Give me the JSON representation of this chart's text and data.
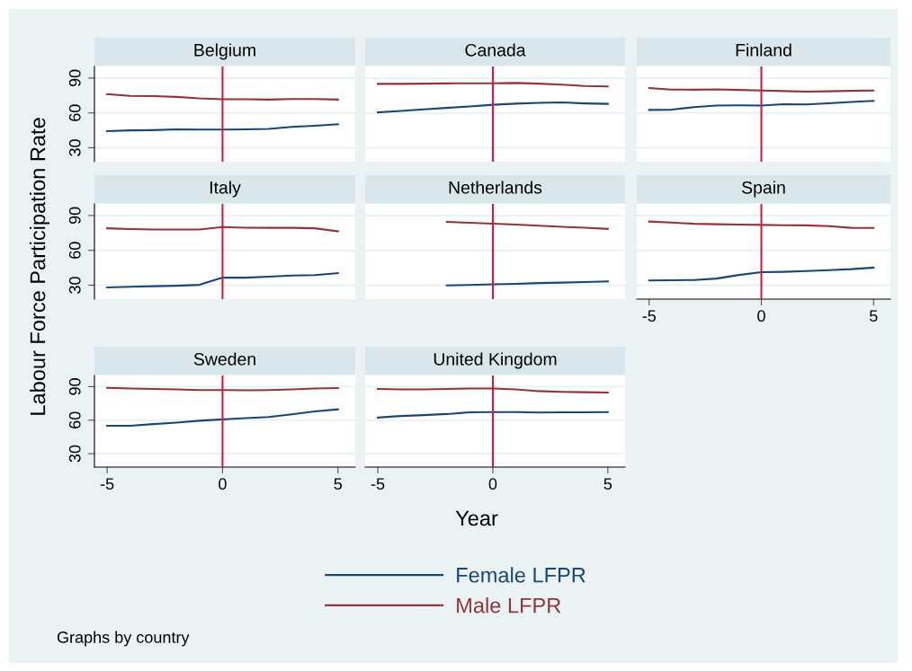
{
  "chart_data": [
    {
      "type": "line",
      "title": "Belgium",
      "x": [
        -5,
        -4,
        -3,
        -2,
        -1,
        0,
        1,
        2,
        3,
        4,
        5
      ],
      "xlim": [
        -5.55,
        5.75
      ],
      "xticks": [
        -5,
        0,
        5
      ],
      "ylim": [
        18,
        100
      ],
      "yticks": [
        30,
        60,
        90
      ],
      "grid": "y",
      "tick_labels": "y",
      "ylabel": "Labour Force Participation Rate",
      "ref_lines": [
        {
          "axis": "x",
          "value": 0,
          "color": "#d01c45"
        }
      ],
      "series": [
        {
          "color": "#1a476f",
          "values": [
            44.3,
            45,
            45.2,
            45.8,
            45.6,
            45.6,
            45.8,
            46.2,
            48,
            49,
            50.3
          ]
        },
        {
          "color": "#90353b",
          "values": [
            76.2,
            74.7,
            74.5,
            73.8,
            72.5,
            71.7,
            71.8,
            71.5,
            72,
            71.9,
            71.5
          ]
        }
      ]
    },
    {
      "type": "line",
      "title": "Canada",
      "x": [
        -5,
        -4,
        -3,
        -2,
        -1,
        0,
        1,
        2,
        3,
        4,
        5
      ],
      "xlim": [
        -5.55,
        5.75
      ],
      "xticks": [
        -5,
        0,
        5
      ],
      "ylim": [
        18,
        100
      ],
      "yticks": [
        30,
        60,
        90
      ],
      "grid": "y",
      "tick_labels": false,
      "ref_lines": [
        {
          "axis": "x",
          "value": 0,
          "color": "#d01c45"
        }
      ],
      "series": [
        {
          "color": "#1a476f",
          "values": [
            60.5,
            61.7,
            63.1,
            64.3,
            65.6,
            67,
            68,
            68.7,
            69,
            68.2,
            67.8
          ]
        },
        {
          "color": "#90353b",
          "values": [
            85,
            85,
            85.2,
            85.4,
            85.5,
            85.5,
            85.8,
            85.2,
            84.3,
            83.2,
            82.8
          ]
        }
      ]
    },
    {
      "type": "line",
      "title": "Finland",
      "x": [
        -5,
        -4,
        -3,
        -2,
        -1,
        0,
        1,
        2,
        3,
        4,
        5
      ],
      "xlim": [
        -5.55,
        5.75
      ],
      "xticks": [
        -5,
        0,
        5
      ],
      "ylim": [
        18,
        100
      ],
      "yticks": [
        30,
        60,
        90
      ],
      "grid": "y",
      "tick_labels": false,
      "ref_lines": [
        {
          "axis": "x",
          "value": 0,
          "color": "#d01c45"
        }
      ],
      "series": [
        {
          "color": "#1a476f",
          "values": [
            62.6,
            62.8,
            65,
            66.3,
            66.5,
            66.3,
            67.5,
            67.3,
            68.3,
            69.5,
            70.4
          ]
        },
        {
          "color": "#90353b",
          "values": [
            81.4,
            80.1,
            80,
            80.3,
            79.8,
            79.3,
            78.8,
            78.3,
            78.6,
            79,
            79.3
          ]
        }
      ]
    },
    {
      "type": "line",
      "title": "Italy",
      "x": [
        -5,
        -4,
        -3,
        -2,
        -1,
        0,
        1,
        2,
        3,
        4,
        5
      ],
      "xlim": [
        -5.55,
        5.75
      ],
      "xticks": [
        -5,
        0,
        5
      ],
      "ylim": [
        18,
        100
      ],
      "yticks": [
        30,
        60,
        90
      ],
      "grid": "y",
      "tick_labels": "y",
      "ref_lines": [
        {
          "axis": "x",
          "value": 0,
          "color": "#d01c45"
        }
      ],
      "series": [
        {
          "color": "#1a476f",
          "values": [
            28.1,
            28.6,
            29.1,
            29.5,
            30.3,
            36.5,
            36.5,
            37.3,
            38.3,
            38.7,
            40.4
          ]
        },
        {
          "color": "#90353b",
          "values": [
            79,
            78.3,
            78,
            78,
            78,
            80.1,
            79.5,
            79.4,
            79.4,
            79,
            76.4
          ]
        }
      ]
    },
    {
      "type": "line",
      "title": "Netherlands",
      "x": [
        -2,
        -1,
        0,
        1,
        2,
        3,
        4,
        5
      ],
      "xlim": [
        -5.55,
        5.75
      ],
      "xticks": [
        -5,
        0,
        5
      ],
      "ylim": [
        18,
        100
      ],
      "yticks": [
        30,
        60,
        90
      ],
      "grid": "y",
      "tick_labels": false,
      "ref_lines": [
        {
          "axis": "x",
          "value": 0,
          "color": "#d01c45"
        }
      ],
      "series": [
        {
          "color": "#1a476f",
          "values": [
            29.8,
            30.2,
            30.7,
            31.2,
            31.8,
            32.2,
            32.7,
            33.3
          ]
        },
        {
          "color": "#90353b",
          "values": [
            84.5,
            83.8,
            83,
            82.2,
            81.3,
            80.3,
            79.5,
            78.5
          ]
        }
      ]
    },
    {
      "type": "line",
      "title": "Spain",
      "x": [
        -5,
        -4,
        -3,
        -2,
        -1,
        0,
        1,
        2,
        3,
        4,
        5
      ],
      "xlim": [
        -5.55,
        5.75
      ],
      "xticks": [
        -5,
        0,
        5
      ],
      "ylim": [
        18,
        100
      ],
      "yticks": [
        30,
        60,
        90
      ],
      "grid": "y",
      "tick_labels": "x",
      "ref_lines": [
        {
          "axis": "x",
          "value": 0,
          "color": "#d01c45"
        }
      ],
      "series": [
        {
          "color": "#1a476f",
          "values": [
            34.1,
            34.2,
            34.5,
            35.7,
            38.8,
            41.2,
            41.5,
            42.2,
            43,
            43.8,
            45.1
          ]
        },
        {
          "color": "#90353b",
          "values": [
            84.8,
            84,
            82.9,
            82.5,
            82.2,
            81.9,
            81.6,
            81.5,
            80.9,
            79.4,
            79.3
          ]
        }
      ]
    },
    {
      "type": "line",
      "title": "Sweden",
      "x": [
        -5,
        -4,
        -3,
        -2,
        -1,
        0,
        1,
        2,
        3,
        4,
        5
      ],
      "xlim": [
        -5.55,
        5.75
      ],
      "xticks": [
        -5,
        0,
        5
      ],
      "ylim": [
        18,
        100
      ],
      "yticks": [
        30,
        60,
        90
      ],
      "grid": "y",
      "ref_lines": [
        {
          "axis": "x",
          "value": 0,
          "color": "#d01c45"
        }
      ],
      "series": [
        {
          "color": "#1a476f",
          "values": [
            55,
            55,
            56.5,
            57.8,
            59.5,
            60.7,
            61.8,
            62.8,
            65.2,
            67.8,
            69.7
          ]
        },
        {
          "color": "#90353b",
          "values": [
            89,
            88.3,
            88,
            87.6,
            87,
            87,
            86.7,
            86.9,
            87.5,
            88.3,
            88.7
          ]
        }
      ]
    },
    {
      "type": "line",
      "title": "United Kingdom",
      "x": [
        -5,
        -4,
        -3,
        -2,
        -1,
        0,
        1,
        2,
        3,
        4,
        5
      ],
      "xlim": [
        -5.55,
        5.75
      ],
      "xticks": [
        -5,
        0,
        5
      ],
      "ylim": [
        18,
        100
      ],
      "yticks": [
        30,
        60,
        90
      ],
      "grid": "y",
      "tick_labels": "x",
      "xlabel": "Year",
      "legend": "bottom",
      "annotations": [
        "Graphs by country"
      ],
      "ref_lines": [
        {
          "axis": "x",
          "value": 0,
          "color": "#d01c45"
        }
      ],
      "series": [
        {
          "name": "Female LFPR",
          "color": "#1a476f",
          "values": [
            62.3,
            63.7,
            64.5,
            65.5,
            67,
            67.3,
            67.2,
            66.8,
            67,
            67.1,
            67.2
          ]
        },
        {
          "name": "Male LFPR",
          "color": "#90353b",
          "values": [
            88,
            87.5,
            87.5,
            88,
            88.3,
            88.3,
            87.5,
            86,
            85.3,
            85,
            84.7
          ]
        }
      ]
    }
  ]
}
